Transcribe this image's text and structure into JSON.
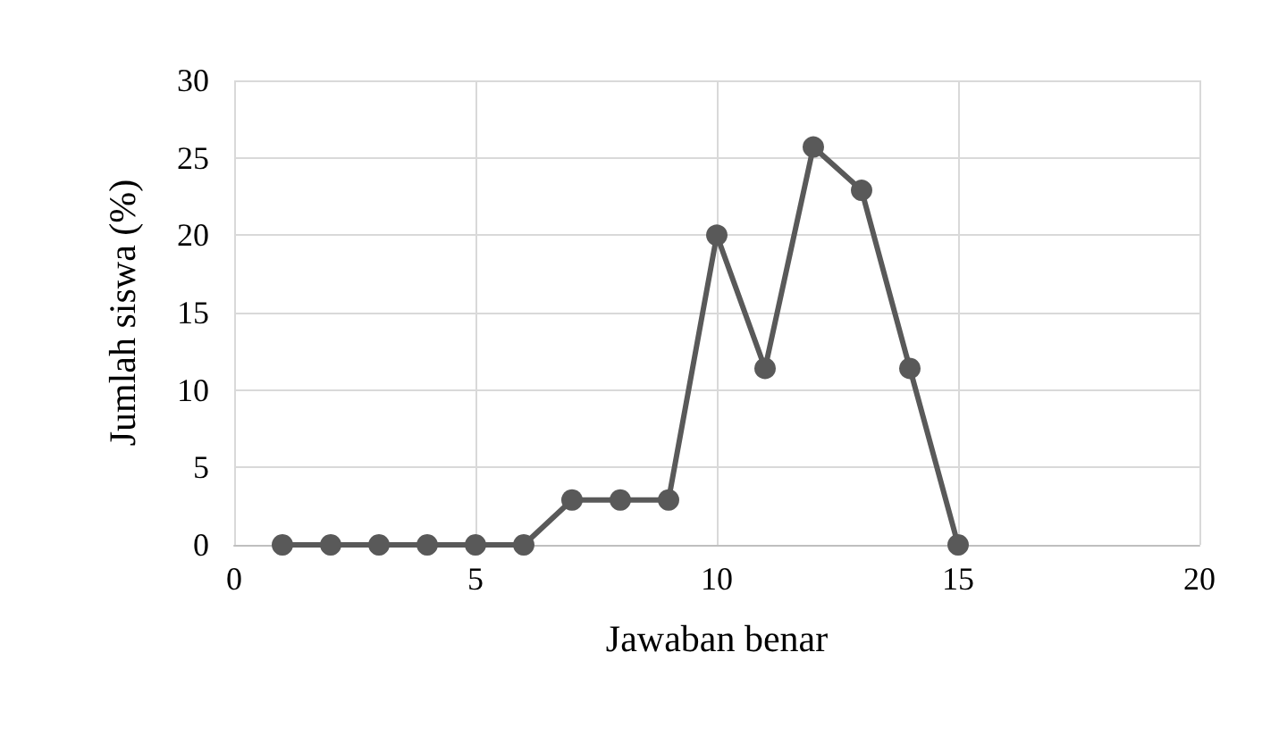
{
  "chart_data": {
    "type": "line",
    "xlabel": "Jawaban benar",
    "ylabel": "Jumlah siswa (%)",
    "x": [
      1,
      2,
      3,
      4,
      5,
      6,
      7,
      8,
      9,
      10,
      11,
      12,
      13,
      14,
      15
    ],
    "series": [
      {
        "color": "#595959",
        "values": [
          0,
          0,
          0,
          0,
          0,
          0,
          2.9,
          2.9,
          2.9,
          20,
          11.4,
          25.7,
          22.9,
          11.4,
          0
        ]
      }
    ],
    "xlim": [
      0,
      20
    ],
    "xticks": [
      0,
      5,
      10,
      15,
      20
    ],
    "ylim": [
      0,
      30
    ],
    "yticks": [
      0,
      5,
      10,
      15,
      20,
      25,
      30
    ],
    "grid": true,
    "marker": "circle",
    "line_style": "solid"
  }
}
